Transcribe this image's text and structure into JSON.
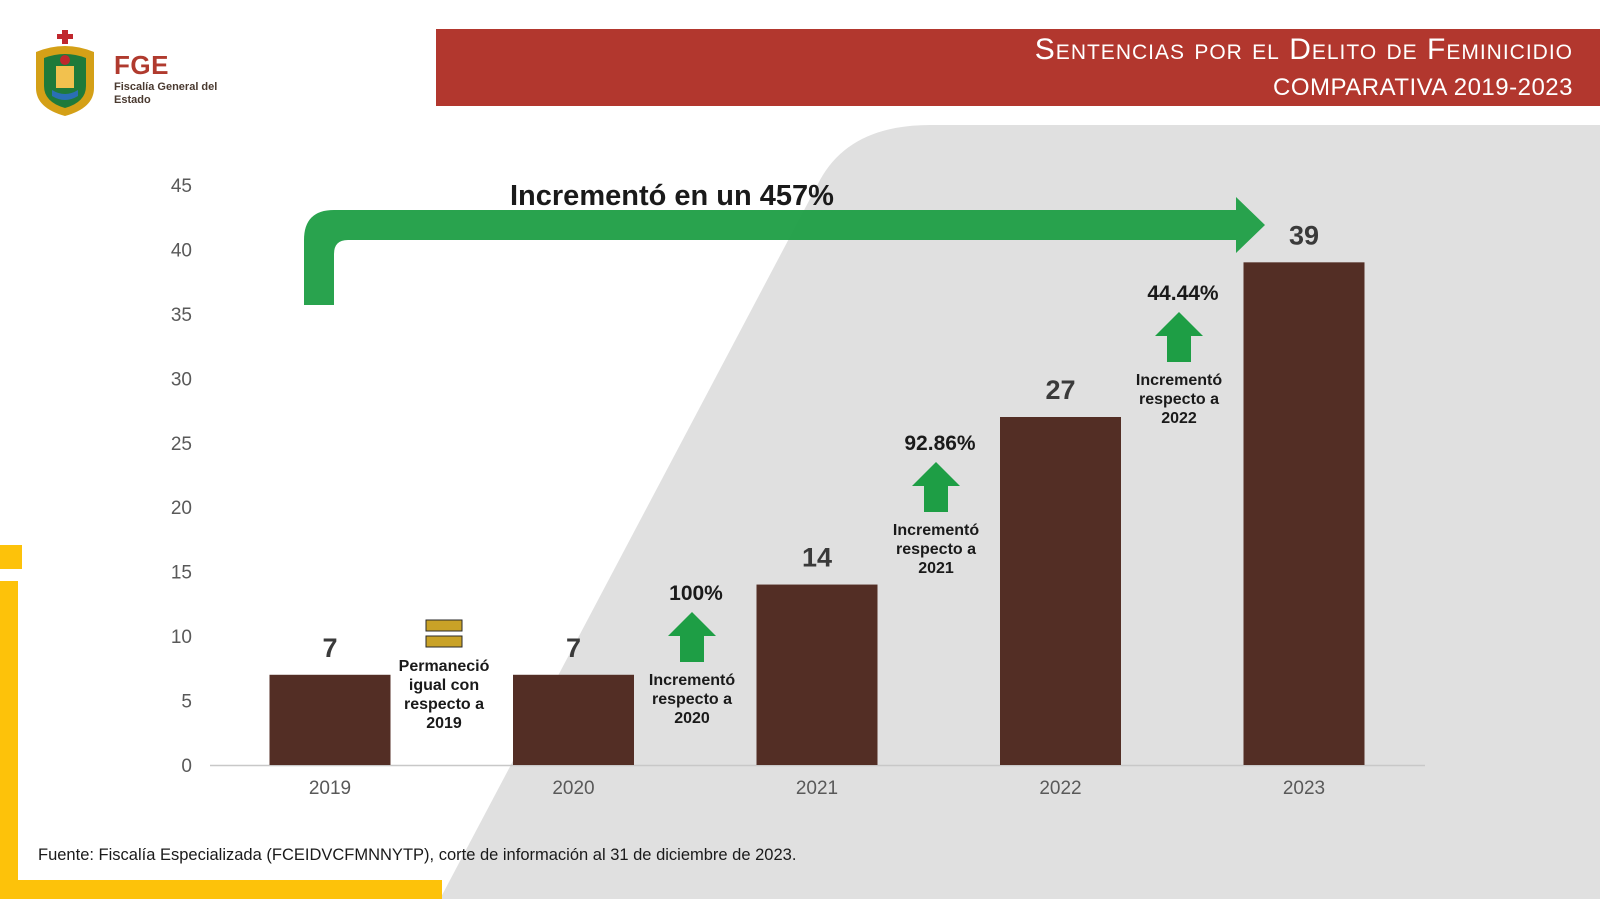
{
  "header": {
    "logo_abbrev": "FGE",
    "logo_name": "Fiscalía General del Estado",
    "title": "Sentencias por el Delito de Feminicidio",
    "subtitle": "COMPARATIVA 2019-2023"
  },
  "colors": {
    "title_bar": "#b2372e",
    "bar": "#532e25",
    "arrow_green": "#1e9e45",
    "equal_sign": "#c9a227",
    "accent_yellow": "#fdc20a",
    "background_shape": "#e0e0e0"
  },
  "chart_data": {
    "type": "bar",
    "categories": [
      "2019",
      "2020",
      "2021",
      "2022",
      "2023"
    ],
    "values": [
      7,
      7,
      14,
      27,
      39
    ],
    "ylim": [
      0,
      45
    ],
    "yticks": [
      0,
      5,
      10,
      15,
      20,
      25,
      30,
      35,
      40,
      45
    ],
    "grid": false,
    "total_change_label": "Incrementó en un 457%",
    "annotations": [
      {
        "between": [
          "2019",
          "2020"
        ],
        "icon": "equal-sign-icon",
        "percent": "",
        "text": [
          "Permaneció",
          "igual con",
          "respecto a",
          "2019"
        ]
      },
      {
        "between": [
          "2020",
          "2021"
        ],
        "icon": "up-arrow-icon",
        "percent": "100%",
        "text": [
          "Incrementó",
          "respecto a",
          "2020"
        ]
      },
      {
        "between": [
          "2021",
          "2022"
        ],
        "icon": "up-arrow-icon",
        "percent": "92.86%",
        "text": [
          "Incrementó",
          "respecto a",
          "2021"
        ]
      },
      {
        "between": [
          "2022",
          "2023"
        ],
        "icon": "up-arrow-icon",
        "percent": "44.44%",
        "text": [
          "Incrementó",
          "respecto a",
          "2022"
        ]
      }
    ]
  },
  "footer": {
    "source": "Fuente: Fiscalía Especializada (FCEIDVCFMNNYTP), corte de información al 31 de diciembre de 2023."
  }
}
